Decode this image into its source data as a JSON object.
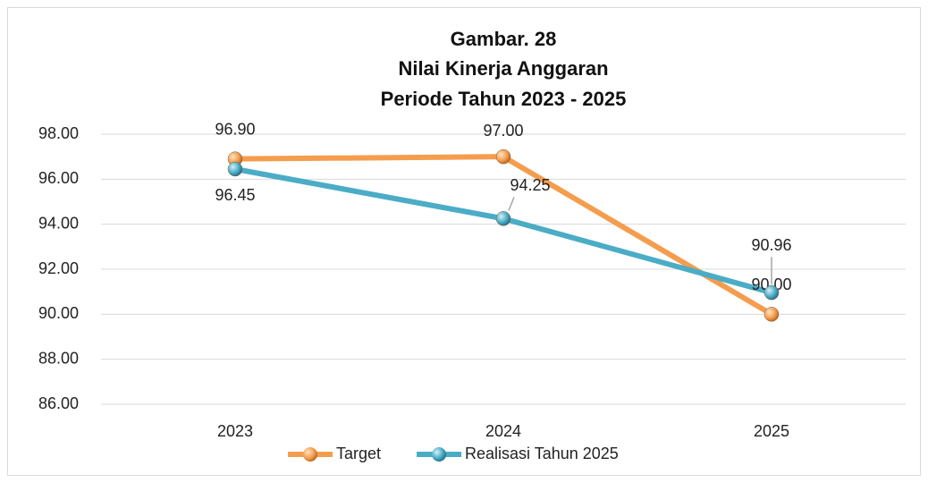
{
  "chart_data": {
    "type": "line",
    "title": [
      "Gambar. 28",
      "Nilai Kinerja Anggaran",
      "Periode Tahun 2023 - 2025"
    ],
    "categories": [
      "2023",
      "2024",
      "2025"
    ],
    "series": [
      {
        "name": "Target",
        "color": "#f59d4e",
        "values": [
          96.9,
          97,
          90
        ],
        "value_labels": [
          "96.90",
          "97.00",
          "90.00"
        ]
      },
      {
        "name": "Realisasi Tahun 2025",
        "color": "#4bacc6",
        "values": [
          96.45,
          94.25,
          90.96
        ],
        "value_labels": [
          "96.45",
          "94.25",
          "90.96"
        ]
      }
    ],
    "ylim": [
      86,
      98
    ],
    "yticks": [
      {
        "value": 86,
        "label": "86.00"
      },
      {
        "value": 88,
        "label": "88.00"
      },
      {
        "value": 90,
        "label": "90.00"
      },
      {
        "value": 92,
        "label": "92.00"
      },
      {
        "value": 94,
        "label": "94.00"
      },
      {
        "value": 96,
        "label": "96.00"
      },
      {
        "value": 98,
        "label": "98.00"
      }
    ],
    "grid": true,
    "legend": "bottom"
  }
}
